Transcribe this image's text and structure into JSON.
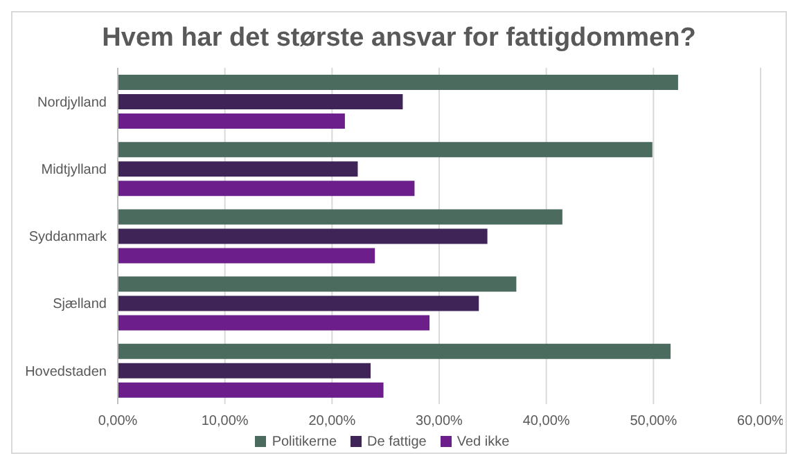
{
  "chart_data": {
    "type": "bar",
    "orientation": "horizontal",
    "title": "Hvem har det største ansvar for fattigdommen?",
    "categories": [
      "Nordjylland",
      "Midtjylland",
      "Syddanmark",
      "Sjælland",
      "Hovedstaden"
    ],
    "series": [
      {
        "name": "Politikerne",
        "color": "#4a6b5e",
        "values": [
          52.3,
          49.9,
          41.5,
          37.2,
          51.6
        ]
      },
      {
        "name": "De fattige",
        "color": "#3f2457",
        "values": [
          26.6,
          22.4,
          34.5,
          33.7,
          23.6
        ]
      },
      {
        "name": "Ved ikke",
        "color": "#6c1f8a",
        "values": [
          21.2,
          27.7,
          24.0,
          29.1,
          24.8
        ]
      }
    ],
    "xlim": [
      0,
      60
    ],
    "xticks": [
      {
        "value": 0,
        "label": "0,00%"
      },
      {
        "value": 10,
        "label": "10,00%"
      },
      {
        "value": 20,
        "label": "20,00%"
      },
      {
        "value": 30,
        "label": "30,00%"
      },
      {
        "value": 40,
        "label": "40,00%"
      },
      {
        "value": 50,
        "label": "50,00%"
      },
      {
        "value": 60,
        "label": "60,00%"
      }
    ],
    "grid": "x",
    "legend": "bottom"
  }
}
